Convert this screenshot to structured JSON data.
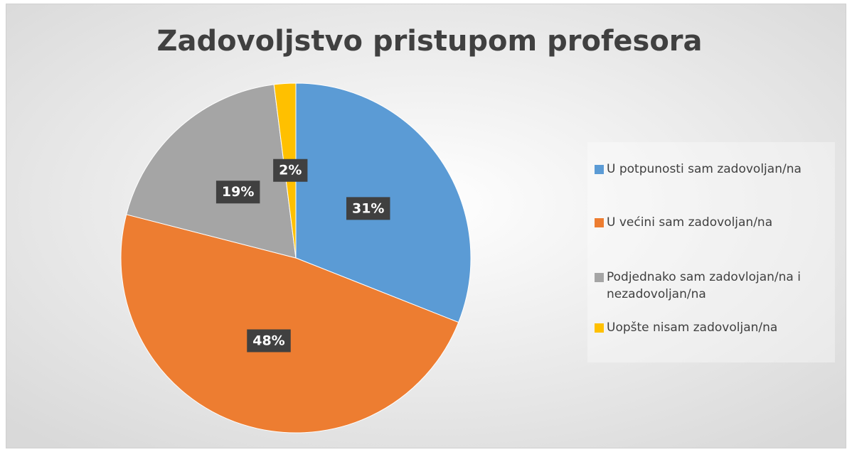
{
  "chart_data": {
    "type": "pie",
    "title": "Zadovoljstvo pristupom profesora",
    "categories": [
      "U potpunosti sam zadovoljan/na",
      "U većini sam zadovoljan/na",
      "Podjednako sam zadovlojan/na i nezadovoljan/na",
      "Uopšte nisam zadovoljan/na"
    ],
    "values": [
      31,
      48,
      19,
      2
    ],
    "value_labels": [
      "31%",
      "48%",
      "19%",
      "2%"
    ],
    "colors": [
      "#5b9bd5",
      "#ed7d31",
      "#a5a5a5",
      "#ffc000"
    ],
    "legend": "right"
  }
}
